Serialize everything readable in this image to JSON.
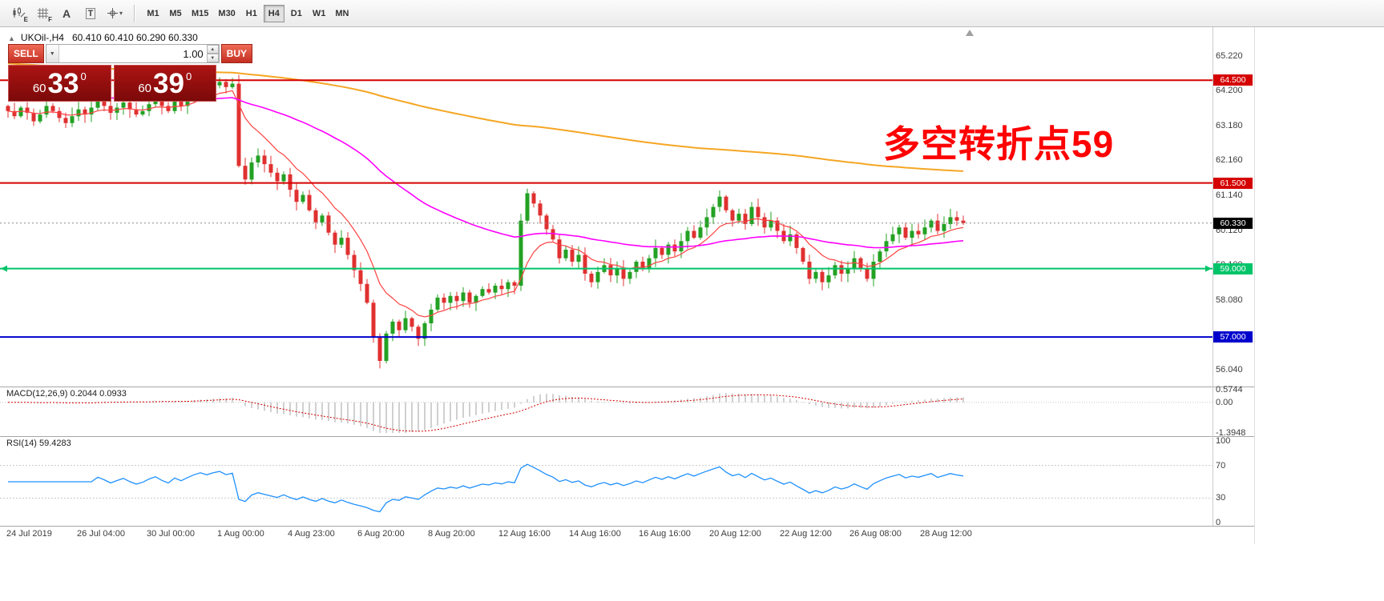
{
  "toolbar": {
    "tools": [
      {
        "name": "chart-pattern-tool",
        "sub": "E"
      },
      {
        "name": "grid-tool",
        "sub": "F"
      },
      {
        "name": "text-tool",
        "glyph": "A"
      },
      {
        "name": "label-tool",
        "glyph": "T"
      },
      {
        "name": "crosshair-tool",
        "caret": "▾"
      }
    ],
    "timeframes": [
      "M1",
      "M5",
      "M15",
      "M30",
      "H1",
      "H4",
      "D1",
      "W1",
      "MN"
    ],
    "active_timeframe": "H4"
  },
  "header": {
    "collapse_glyph": "▲",
    "symbol": "UKOil-,H4",
    "ohlc": "60.410 60.410 60.290 60.330"
  },
  "trade_panel": {
    "sell_label": "SELL",
    "buy_label": "BUY",
    "volume": "1.00",
    "dropdown_glyph": "▼",
    "spinner_up_glyph": "▲",
    "spinner_down_glyph": "▼",
    "bid": {
      "prefix": "60",
      "big": "33",
      "sup": "0"
    },
    "ask": {
      "prefix": "60",
      "big": "39",
      "sup": "0"
    }
  },
  "annotation": {
    "text": "多空转折点59",
    "color": "#FF0000"
  },
  "price_scale": {
    "labels": [
      "65.220",
      "64.200",
      "63.180",
      "62.160",
      "61.140",
      "60.120",
      "59.100",
      "58.080",
      "57.060",
      "56.040"
    ]
  },
  "levels": [
    {
      "price": 64.5,
      "label": "64.500",
      "color": "#D50000",
      "width": 2
    },
    {
      "price": 61.5,
      "label": "61.500",
      "color": "#D50000",
      "width": 2
    },
    {
      "price": 59.0,
      "label": "59.000",
      "color": "#00C46A",
      "width": 2,
      "arrows": true
    },
    {
      "price": 57.0,
      "label": "57.000",
      "color": "#0000CD",
      "width": 2
    }
  ],
  "current_price": {
    "value": 60.33,
    "label": "60.330",
    "badge_color": "#000000"
  },
  "macd_panel": {
    "label": "MACD(12,26,9) 0.2044 0.0933",
    "scale_max": "0.5744",
    "scale_zero": "0.00",
    "scale_min": "-1.3948",
    "max": 0.5744,
    "min": -1.3948,
    "histogram_color": "#BBBBBB",
    "signal_color": "#D50000"
  },
  "rsi_panel": {
    "label": "RSI(14) 59.4283",
    "scale": [
      100,
      70,
      30,
      0
    ],
    "levels": [
      70,
      30
    ],
    "line_color": "#1E90FF"
  },
  "time_axis": [
    "24 Jul 2019",
    "26 Jul 04:00",
    "30 Jul 00:00",
    "1 Aug 00:00",
    "4 Aug 23:00",
    "6 Aug 20:00",
    "8 Aug 20:00",
    "12 Aug 16:00",
    "14 Aug 16:00",
    "16 Aug 16:00",
    "20 Aug 12:00",
    "22 Aug 12:00",
    "26 Aug 08:00",
    "28 Aug 12:00"
  ],
  "chart_data": {
    "type": "candlestick",
    "symbol": "UKOil-",
    "timeframe": "H4",
    "ylim": [
      55.6,
      66.05
    ],
    "up_color": "#23A123",
    "down_color": "#E03030",
    "moving_averages": [
      {
        "name": "fast",
        "period": 10,
        "color": "#FF4040",
        "seed": 63.6,
        "width": 1.2
      },
      {
        "name": "mid",
        "period": 60,
        "color": "#FF00FF",
        "seed": 64.3,
        "width": 1.6
      },
      {
        "name": "slow",
        "period": 280,
        "color": "#F5A623",
        "seed": 65.0,
        "width": 2
      }
    ],
    "closes": [
      63.6,
      63.45,
      63.7,
      63.55,
      63.3,
      63.5,
      63.75,
      63.6,
      63.4,
      63.25,
      63.45,
      63.65,
      63.5,
      63.7,
      63.9,
      63.75,
      63.55,
      63.7,
      63.85,
      63.65,
      63.5,
      63.6,
      63.8,
      63.95,
      63.75,
      63.6,
      63.9,
      63.75,
      63.95,
      64.15,
      64.3,
      64.2,
      64.35,
      64.45,
      64.3,
      64.4,
      62.0,
      61.6,
      62.1,
      62.3,
      62.05,
      61.8,
      61.55,
      61.75,
      61.3,
      60.95,
      61.15,
      60.7,
      60.35,
      60.55,
      60.05,
      59.7,
      59.9,
      59.4,
      58.95,
      58.55,
      58.0,
      57.0,
      56.3,
      57.1,
      57.45,
      57.2,
      57.55,
      57.3,
      56.95,
      57.4,
      57.8,
      58.15,
      58.0,
      58.2,
      58.05,
      58.3,
      58.0,
      58.2,
      58.4,
      58.3,
      58.5,
      58.4,
      58.6,
      58.5,
      60.4,
      61.2,
      60.9,
      60.55,
      60.15,
      59.85,
      59.3,
      59.55,
      59.2,
      59.4,
      58.85,
      58.6,
      58.9,
      59.1,
      58.8,
      59.0,
      58.7,
      58.9,
      59.2,
      59.0,
      59.3,
      59.6,
      59.4,
      59.7,
      59.5,
      59.8,
      60.1,
      59.9,
      60.2,
      60.5,
      60.8,
      61.1,
      60.7,
      60.4,
      60.6,
      60.3,
      60.8,
      60.5,
      60.2,
      60.4,
      60.1,
      59.8,
      60.0,
      59.6,
      59.2,
      58.7,
      58.9,
      58.6,
      58.8,
      59.1,
      58.85,
      59.0,
      59.3,
      59.0,
      58.7,
      59.2,
      59.5,
      59.8,
      60.0,
      60.2,
      59.9,
      60.1,
      60.0,
      60.2,
      60.4,
      60.1,
      60.3,
      60.5,
      60.4,
      60.33
    ]
  }
}
